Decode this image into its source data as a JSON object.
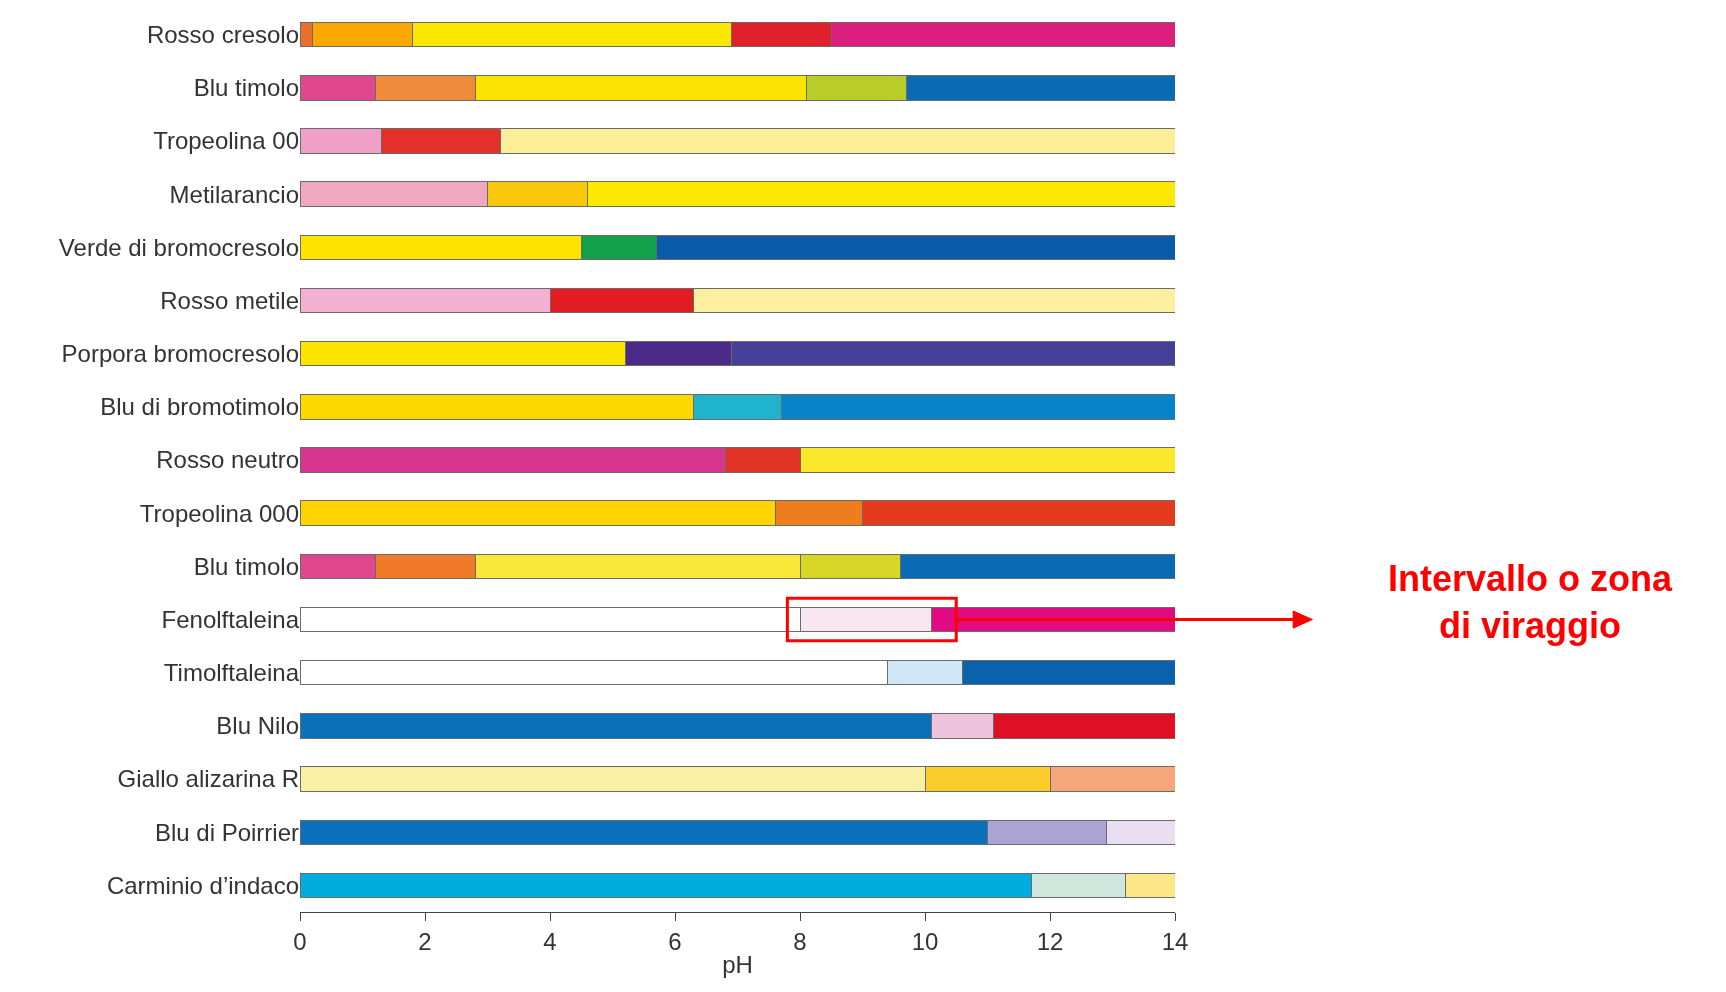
{
  "chart_data": {
    "type": "bar",
    "orientation": "horizontal",
    "stacked": true,
    "xlabel": "pH",
    "xlim": [
      0,
      14
    ],
    "xticks": [
      0,
      2,
      4,
      6,
      8,
      10,
      12,
      14
    ],
    "categories": [
      "Rosso cresolo",
      "Blu timolo",
      "Tropeolina 00",
      "Metilarancio",
      "Verde di bromocresolo",
      "Rosso metile",
      "Porpora bromocresolo",
      "Blu di bromotimolo",
      "Rosso neutro",
      "Tropeolina 000",
      "Blu timolo",
      "Fenolftaleina",
      "Timolftaleina",
      "Blu Nilo",
      "Giallo alizarina R",
      "Blu di Poirrier",
      "Carminio d’indaco"
    ],
    "series": [
      {
        "values": [
          0.2,
          1.2,
          1.3,
          3.0,
          4.5,
          4.0,
          5.2,
          6.3,
          6.8,
          7.6,
          1.2,
          8.0,
          9.4,
          10.1,
          10.0,
          11.0,
          11.7
        ],
        "colors": [
          "#e8702a",
          "#e0478f",
          "#f0a0c8",
          "#f0a8c0",
          "#fce400",
          "#f4b0d0",
          "#fce400",
          "#fcd800",
          "#d8368e",
          "#fcd400",
          "#e0478f",
          "#ffffff",
          "#ffffff",
          "#0a70bb",
          "#f9f0a6",
          "#0a70bb",
          "#00ace0"
        ]
      },
      {
        "values": [
          1.6,
          1.6,
          1.9,
          1.6,
          1.2,
          2.3,
          1.7,
          1.4,
          1.2,
          1.4,
          1.6,
          2.1,
          1.2,
          1.0,
          2.0,
          1.9,
          1.5
        ],
        "colors": [
          "#f8a800",
          "#ee8a3a",
          "#e3302a",
          "#f9c80a",
          "#13a04a",
          "#e31b23",
          "#4b2a8a",
          "#20b4cc",
          "#e13426",
          "#ee7d1e",
          "#ee7a2a",
          "#f8e6f0",
          "#cfe6f6",
          "#eec4dc",
          "#f9cc2a",
          "#aaa4d4",
          "#cfe6dc"
        ]
      },
      {
        "values": [
          5.1,
          5.3,
          10.8,
          9.4,
          8.3,
          7.7,
          7.1,
          6.3,
          6.0,
          5.0,
          5.2,
          3.9,
          3.4,
          2.9,
          2.0,
          1.1,
          0.8
        ],
        "colors": [
          "#fbe600",
          "#fbe300",
          "#fbee98",
          "#fce800",
          "#0a5caa",
          "#fcf0a0",
          "#453f97",
          "#0683c9",
          "#fce82a",
          "#e43b1c",
          "#f8e83a",
          "#e10a82",
          "#0a62ac",
          "#e01024",
          "#f6a67a",
          "#eadff0",
          "#fbe68a"
        ]
      },
      {
        "values": [
          1.6,
          1.6,
          null,
          null,
          null,
          null,
          null,
          null,
          null,
          null,
          1.6,
          null,
          null,
          null,
          null,
          null,
          null
        ],
        "colors": [
          "#e0202a",
          "#b8cc2a",
          null,
          null,
          null,
          null,
          null,
          null,
          null,
          null,
          "#d7d624",
          null,
          null,
          null,
          null,
          null,
          null
        ]
      },
      {
        "values": [
          5.5,
          4.3,
          null,
          null,
          null,
          null,
          null,
          null,
          null,
          null,
          4.4,
          null,
          null,
          null,
          null,
          null,
          null
        ],
        "colors": [
          "#dc1f7f",
          "#0a6ab4",
          null,
          null,
          null,
          null,
          null,
          null,
          null,
          null,
          "#0a6ab4",
          null,
          null,
          null,
          null,
          null,
          null
        ]
      }
    ],
    "annotations": [
      "Intervallo o zona\ndi viraggio"
    ]
  }
}
